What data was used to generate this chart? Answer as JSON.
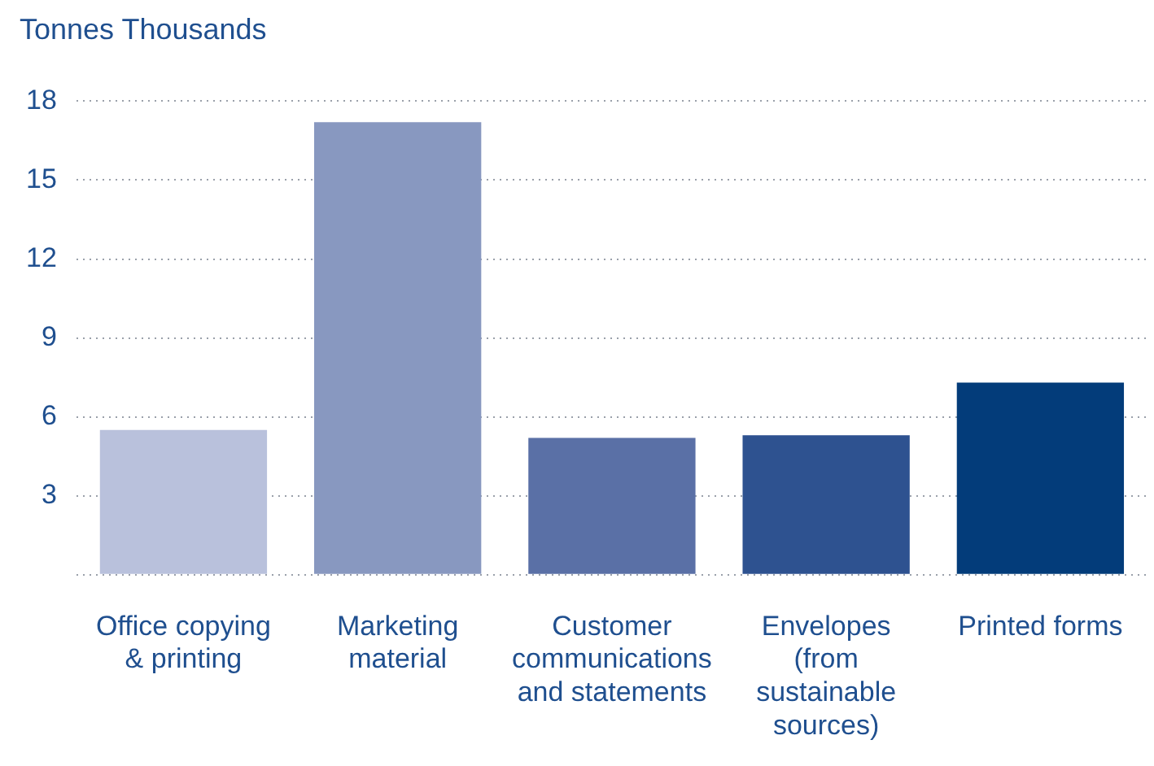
{
  "chart_data": {
    "type": "bar",
    "ylabel": "Tonnes Thousands",
    "categories": [
      "Office copying & printing",
      "Marketing material",
      "Customer communications and statements",
      "Envelopes (from sustainable sources)",
      "Printed forms"
    ],
    "values": [
      5.5,
      17.2,
      5.2,
      5.3,
      7.3
    ],
    "colors": [
      "#b9c1dc",
      "#8898c0",
      "#5a70a6",
      "#2e5290",
      "#033c7a"
    ],
    "ylim": [
      0,
      18
    ],
    "yticks": [
      {
        "value": 0,
        "label": null
      },
      3,
      6,
      9,
      12,
      15,
      18
    ],
    "grid": "y",
    "legend": false
  }
}
